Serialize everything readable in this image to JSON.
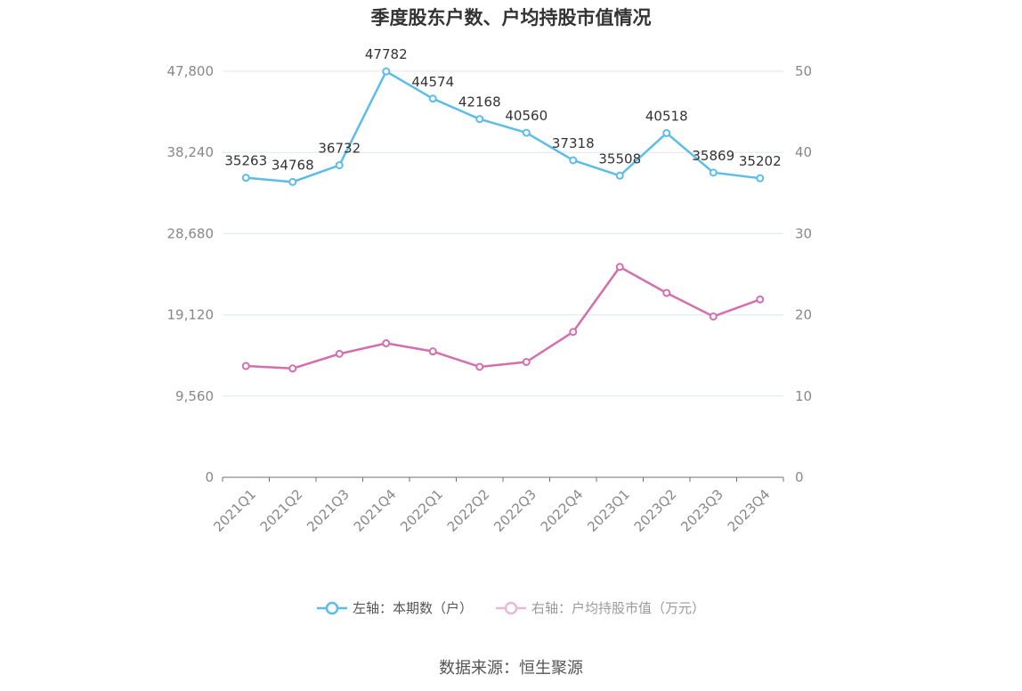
{
  "title": "季度股东户数、户均持股市值情况",
  "source": "数据来源：恒生聚源",
  "colors": {
    "left_series": "#5bbde8",
    "right_series": "#d36fae",
    "grid": "#e0e6f1",
    "axis_label": "#888888"
  },
  "chart_data": {
    "type": "line",
    "title": "季度股东户数、户均持股市值情况",
    "categories": [
      "2021Q1",
      "2021Q2",
      "2021Q3",
      "2021Q4",
      "2022Q1",
      "2022Q2",
      "2022Q3",
      "2022Q4",
      "2023Q1",
      "2023Q2",
      "2023Q3",
      "2023Q4"
    ],
    "left_axis": {
      "ticks": [
        "0",
        "9,560",
        "19,120",
        "28,680",
        "38,240",
        "47,800"
      ],
      "min": 0,
      "max": 47800
    },
    "right_axis": {
      "ticks": [
        "0",
        "10",
        "20",
        "30",
        "40",
        "50"
      ],
      "min": 0,
      "max": 50
    },
    "series": [
      {
        "name": "左轴：本期数（户）",
        "axis": "left",
        "values": [
          35263,
          34768,
          36732,
          47782,
          44574,
          42168,
          40560,
          37318,
          35508,
          40518,
          35869,
          35202
        ],
        "labels": [
          "35263",
          "34768",
          "36732",
          "47782",
          "44574",
          "42168",
          "40560",
          "37318",
          "35508",
          "40518",
          "35869",
          "35202"
        ]
      },
      {
        "name": "右轴：户均持股市值（万元）",
        "axis": "right",
        "values": [
          13.7,
          13.4,
          15.2,
          16.5,
          15.5,
          13.6,
          14.2,
          17.9,
          25.9,
          22.7,
          19.8,
          21.9
        ]
      }
    ],
    "grid": true,
    "legend_position": "bottom"
  }
}
